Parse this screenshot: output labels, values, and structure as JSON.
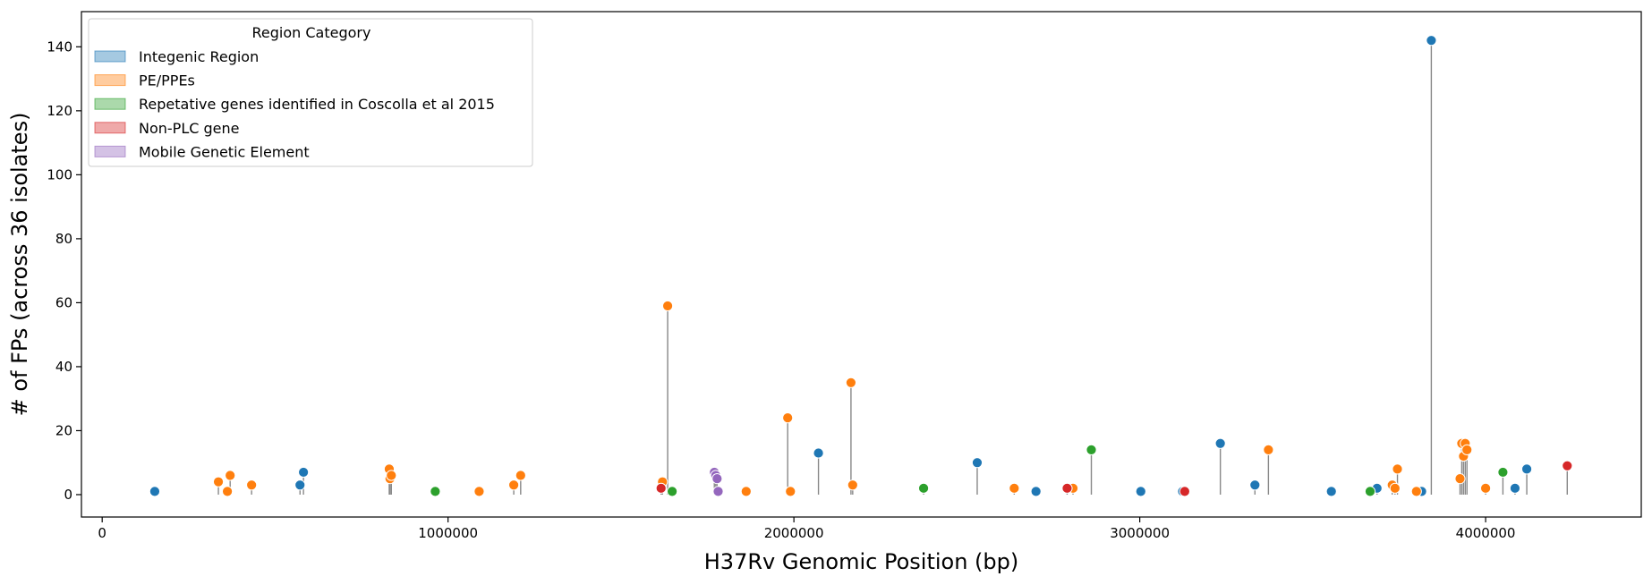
{
  "chart_data": {
    "type": "scatter",
    "subtype": "lollipop",
    "xlabel": "H37Rv Genomic Position (bp)",
    "ylabel": "# of FPs (across 36 isolates)",
    "xlim": [
      -60000,
      4450000
    ],
    "ylim": [
      -7,
      151
    ],
    "xticks": [
      0,
      1000000,
      2000000,
      3000000,
      4000000
    ],
    "yticks": [
      0,
      20,
      40,
      60,
      80,
      100,
      120,
      140
    ],
    "grid": false,
    "stem_color": "#888888",
    "legend": {
      "title": "Region Category",
      "placement": "top-left",
      "entries": [
        {
          "name": "Integenic Region",
          "color": "#1f77b4"
        },
        {
          "name": "PE/PPEs",
          "color": "#ff7f0e"
        },
        {
          "name": "Repetative genes identified in Coscolla et al 2015",
          "color": "#2ca02c"
        },
        {
          "name": "Non-PLC gene",
          "color": "#d62728"
        },
        {
          "name": "Mobile Genetic Element",
          "color": "#9467bd"
        }
      ]
    },
    "series": [
      {
        "name": "Integenic Region",
        "color": "#1f77b4",
        "points": [
          [
            152000,
            1
          ],
          [
            572000,
            3
          ],
          [
            582000,
            7
          ],
          [
            2071000,
            13
          ],
          [
            2530000,
            10
          ],
          [
            2700000,
            1
          ],
          [
            3003000,
            1
          ],
          [
            3124000,
            1
          ],
          [
            3233000,
            16
          ],
          [
            3333000,
            3
          ],
          [
            3554000,
            1
          ],
          [
            3686000,
            2
          ],
          [
            3815000,
            1
          ],
          [
            3843000,
            142
          ],
          [
            4085000,
            2
          ],
          [
            4119000,
            8
          ]
        ]
      },
      {
        "name": "PE/PPEs",
        "color": "#ff7f0e",
        "points": [
          [
            336000,
            4
          ],
          [
            362000,
            1
          ],
          [
            370000,
            6
          ],
          [
            432000,
            3
          ],
          [
            830000,
            8
          ],
          [
            832000,
            5
          ],
          [
            836000,
            6
          ],
          [
            1090000,
            1
          ],
          [
            1190000,
            3
          ],
          [
            1210000,
            6
          ],
          [
            1620000,
            4
          ],
          [
            1635000,
            59
          ],
          [
            1862000,
            1
          ],
          [
            1982000,
            24
          ],
          [
            1990000,
            1
          ],
          [
            2165000,
            35
          ],
          [
            2170000,
            3
          ],
          [
            2637000,
            2
          ],
          [
            2807000,
            2
          ],
          [
            3372000,
            14
          ],
          [
            3730000,
            3
          ],
          [
            3738000,
            2
          ],
          [
            3745000,
            8
          ],
          [
            3800000,
            1
          ],
          [
            3926000,
            5
          ],
          [
            3931000,
            16
          ],
          [
            3936000,
            12
          ],
          [
            3941000,
            16
          ],
          [
            3946000,
            14
          ],
          [
            4000000,
            2
          ]
        ]
      },
      {
        "name": "Repetative genes identified in Coscolla et al 2015",
        "color": "#2ca02c",
        "points": [
          [
            963000,
            1
          ],
          [
            1648000,
            1
          ],
          [
            2375000,
            2
          ],
          [
            2860000,
            14
          ],
          [
            3666000,
            1
          ],
          [
            4050000,
            7
          ]
        ]
      },
      {
        "name": "Non-PLC gene",
        "color": "#d62728",
        "points": [
          [
            1616000,
            2
          ],
          [
            2790000,
            2
          ],
          [
            3130000,
            1
          ],
          [
            4236000,
            9
          ]
        ]
      },
      {
        "name": "Mobile Genetic Element",
        "color": "#9467bd",
        "points": [
          [
            1770000,
            7
          ],
          [
            1774000,
            6
          ],
          [
            1778000,
            5
          ],
          [
            1781000,
            1
          ]
        ]
      }
    ]
  }
}
